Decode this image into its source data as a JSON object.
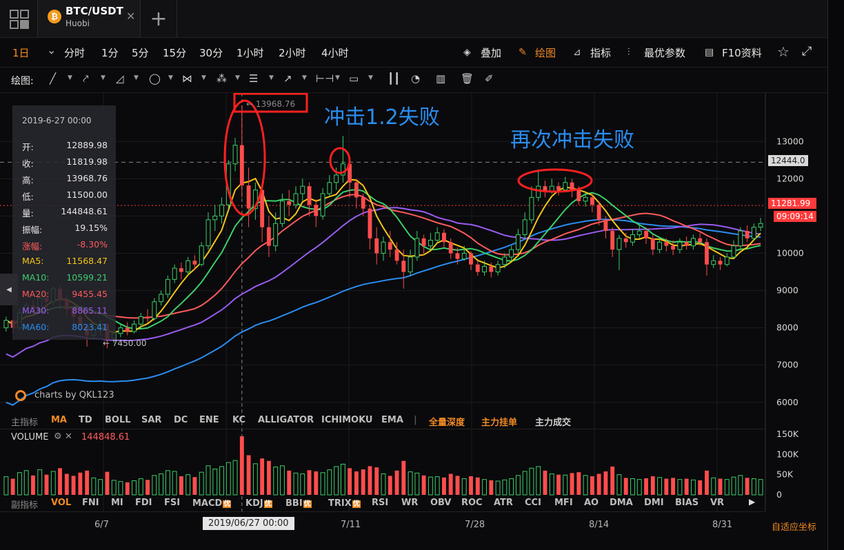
{
  "tab": {
    "coin_glyph": "₿",
    "pair": "BTC/USDT",
    "exchange": "Huobi",
    "close_glyph": "✕",
    "add_glyph": "+"
  },
  "toolbar": {
    "timeframes": [
      "1日",
      "分时",
      "1分",
      "5分",
      "15分",
      "30分",
      "1小时",
      "2小时",
      "4小时"
    ],
    "active_timeframe": "1日",
    "dropdown_glyph": "⌄",
    "right": [
      "叠加",
      "绘图",
      "指标",
      "最优参数",
      "F10资料"
    ],
    "active_right": "绘图",
    "right_icons": [
      "layers-icon",
      "pencil-icon",
      "chart-line-icon",
      "sliders-icon",
      "document-icon"
    ],
    "star_glyph": "☆",
    "fullscreen_glyph": "⤢"
  },
  "drawing": {
    "label": "绘图:"
  },
  "info": {
    "date": "2019-6-27 00:00",
    "rows": [
      {
        "k": "开:",
        "v": "12889.98",
        "color": "#e6e6e6"
      },
      {
        "k": "收:",
        "v": "11819.98",
        "color": "#e6e6e6"
      },
      {
        "k": "高:",
        "v": "13968.76",
        "color": "#e6e6e6"
      },
      {
        "k": "低:",
        "v": "11500.00",
        "color": "#e6e6e6"
      },
      {
        "k": "量:",
        "v": "144848.61",
        "color": "#e6e6e6"
      },
      {
        "k": "振幅:",
        "v": "19.15%",
        "color": "#e6e6e6"
      },
      {
        "k": "涨幅:",
        "v": "-8.30%",
        "color": "#ff5b5b"
      },
      {
        "k": "MA5:",
        "v": "11568.47",
        "color": "#f5c518"
      },
      {
        "k": "MA10:",
        "v": "10599.21",
        "color": "#3ccf6a"
      },
      {
        "k": "MA20:",
        "v": "9455.45",
        "color": "#ff5b5b"
      },
      {
        "k": "MA30:",
        "v": "8865.11",
        "color": "#9a5cf0"
      },
      {
        "k": "MA60:",
        "v": "8023.41",
        "color": "#2a8df0"
      }
    ]
  },
  "indicators_main": {
    "label": "主指标",
    "items": [
      "MA",
      "TD",
      "BOLL",
      "SAR",
      "DC",
      "ENE",
      "KC",
      "ALLIGATOR",
      "ICHIMOKU",
      "EMA"
    ],
    "active": "MA",
    "extra": [
      "全量深度",
      "主力挂单",
      "主力成交"
    ]
  },
  "indicators_sub": {
    "label": "副指标",
    "items": [
      "VOL",
      "FNI",
      "MI",
      "FDI",
      "FSI",
      "MACD",
      "KDJ",
      "BBI",
      "TRIX",
      "RSI",
      "WR",
      "OBV",
      "ROC",
      "ATR",
      "CCI",
      "MFI",
      "AO",
      "DMA",
      "DMI",
      "BIAS",
      "VR"
    ],
    "active": "VOL",
    "badged": [
      "MACD",
      "KDJ",
      "BBI",
      "TRIX"
    ],
    "badge_text": "优"
  },
  "volume": {
    "label": "VOLUME",
    "value": "144848.61"
  },
  "watermark": "charts by QKL123",
  "adaptive_label": "自适应坐标",
  "annotations": {
    "first": "冲击1.2失败",
    "second": "再次冲击失败"
  },
  "high_marker": "← 13968.76",
  "low_marker": "← 7450.00",
  "crosshair_date": "2019/06/27 00:00",
  "price_tags": {
    "dashed": "12444.0",
    "current": "11281.99",
    "countdown": "09:09:14"
  },
  "chart_data": {
    "type": "candlestick",
    "xlabels": [
      "6/7",
      "7/11",
      "7/28",
      "8/14",
      "8/31"
    ],
    "y_ticks": [
      6000,
      7000,
      8000,
      9000,
      10000,
      11000,
      12000,
      13000
    ],
    "y_tick_labels": [
      "6000",
      "7000",
      "8000",
      "9000",
      "10000",
      "",
      "12000",
      "13000"
    ],
    "ylim": [
      5700,
      14300
    ],
    "vol_ticks": [
      "150K",
      "100K",
      "50K",
      "0"
    ],
    "vol_max": 150000,
    "candles": [
      [
        8000,
        8200,
        8300,
        7900,
        45000
      ],
      [
        8200,
        8000,
        8250,
        7850,
        40000
      ],
      [
        8000,
        8400,
        8500,
        7950,
        55000
      ],
      [
        8400,
        8600,
        8700,
        8300,
        60000
      ],
      [
        8600,
        8500,
        8750,
        8350,
        48000
      ],
      [
        8500,
        8800,
        8900,
        8400,
        62000
      ],
      [
        8800,
        8700,
        8950,
        8500,
        50000
      ],
      [
        8700,
        9050,
        9100,
        8600,
        58000
      ],
      [
        9050,
        8750,
        9150,
        8500,
        66000
      ],
      [
        8750,
        8500,
        8850,
        8300,
        52000
      ],
      [
        8500,
        8300,
        8600,
        8100,
        47000
      ],
      [
        8300,
        8050,
        8400,
        7900,
        55000
      ],
      [
        8050,
        7800,
        8100,
        7500,
        60000
      ],
      [
        7800,
        7950,
        8050,
        7700,
        42000
      ],
      [
        7950,
        8100,
        8200,
        7800,
        38000
      ],
      [
        8100,
        7700,
        8150,
        7450,
        57000
      ],
      [
        7700,
        7850,
        7950,
        7600,
        36000
      ],
      [
        7850,
        8000,
        8100,
        7750,
        33000
      ],
      [
        8000,
        7900,
        8150,
        7800,
        31000
      ],
      [
        7900,
        8100,
        8200,
        7850,
        35000
      ],
      [
        8100,
        8300,
        8400,
        8000,
        40000
      ],
      [
        8300,
        8250,
        8500,
        8150,
        37000
      ],
      [
        8250,
        8700,
        8800,
        8200,
        48000
      ],
      [
        8700,
        8900,
        9000,
        8600,
        52000
      ],
      [
        8900,
        9300,
        9400,
        8800,
        60000
      ],
      [
        9300,
        9600,
        9700,
        9200,
        58000
      ],
      [
        9600,
        9500,
        9750,
        9300,
        46000
      ],
      [
        9500,
        9800,
        9900,
        9400,
        50000
      ],
      [
        9800,
        9700,
        9950,
        9550,
        44000
      ],
      [
        9700,
        10200,
        10300,
        9650,
        56000
      ],
      [
        10200,
        10900,
        11100,
        10100,
        72000
      ],
      [
        10900,
        11000,
        11300,
        10600,
        64000
      ],
      [
        11000,
        11300,
        11500,
        10800,
        70000
      ],
      [
        11300,
        12400,
        12500,
        11200,
        80000
      ],
      [
        12400,
        12900,
        13100,
        12200,
        85000
      ],
      [
        12900,
        11820,
        13968,
        11500,
        144848
      ],
      [
        11820,
        11200,
        12300,
        10700,
        98000
      ],
      [
        11200,
        11700,
        11900,
        10900,
        77000
      ],
      [
        11700,
        10700,
        11800,
        10300,
        90000
      ],
      [
        10700,
        10200,
        11000,
        9900,
        84000
      ],
      [
        10200,
        10800,
        11100,
        10050,
        69000
      ],
      [
        10800,
        11400,
        11600,
        10700,
        72000
      ],
      [
        11400,
        11300,
        11700,
        11000,
        60000
      ],
      [
        11300,
        11600,
        11800,
        11200,
        54000
      ],
      [
        11600,
        11800,
        12000,
        11400,
        52000
      ],
      [
        11800,
        11300,
        11900,
        11000,
        61000
      ],
      [
        11300,
        11000,
        11450,
        10700,
        58000
      ],
      [
        11000,
        11600,
        11750,
        10900,
        55000
      ],
      [
        11600,
        11900,
        12100,
        11500,
        62000
      ],
      [
        11900,
        12100,
        12300,
        11700,
        70000
      ],
      [
        12100,
        12400,
        13150,
        11900,
        76000
      ],
      [
        12400,
        11900,
        12500,
        11500,
        66000
      ],
      [
        11900,
        11500,
        12000,
        11200,
        58000
      ],
      [
        11500,
        11200,
        11600,
        11000,
        63000
      ],
      [
        11200,
        10400,
        11300,
        10100,
        71000
      ],
      [
        10400,
        10000,
        10700,
        9700,
        68000
      ],
      [
        10000,
        10300,
        10450,
        9800,
        52000
      ],
      [
        10300,
        10100,
        10600,
        9900,
        47000
      ],
      [
        10100,
        9800,
        10300,
        9700,
        60000
      ],
      [
        9800,
        9500,
        10100,
        9050,
        84000
      ],
      [
        9500,
        9900,
        10100,
        9400,
        57000
      ],
      [
        9900,
        10400,
        10600,
        9800,
        54000
      ],
      [
        10400,
        10200,
        10500,
        9950,
        48000
      ],
      [
        10200,
        10350,
        10550,
        10100,
        44000
      ],
      [
        10350,
        10550,
        10700,
        10300,
        45000
      ],
      [
        10550,
        10300,
        10650,
        10150,
        43000
      ],
      [
        10300,
        10000,
        10400,
        9850,
        52000
      ],
      [
        10000,
        9850,
        10150,
        9700,
        47000
      ],
      [
        9850,
        10000,
        10200,
        9800,
        40000
      ],
      [
        10000,
        9700,
        10050,
        9550,
        46000
      ],
      [
        9700,
        9500,
        9800,
        9400,
        43000
      ],
      [
        9500,
        9650,
        9800,
        9400,
        38000
      ],
      [
        9650,
        9500,
        9750,
        9350,
        36000
      ],
      [
        9500,
        9700,
        9800,
        9400,
        34000
      ],
      [
        9700,
        9900,
        10000,
        9600,
        37000
      ],
      [
        9900,
        10100,
        10200,
        9800,
        40000
      ],
      [
        10100,
        10500,
        10650,
        10000,
        48000
      ],
      [
        10500,
        10900,
        11100,
        10400,
        58000
      ],
      [
        10900,
        11500,
        11800,
        10800,
        66000
      ],
      [
        11500,
        11800,
        12250,
        11400,
        70000
      ],
      [
        11800,
        11650,
        11950,
        11500,
        60000
      ],
      [
        11650,
        11800,
        12000,
        11600,
        52000
      ],
      [
        11800,
        11700,
        11900,
        11550,
        50000
      ],
      [
        11700,
        11900,
        12050,
        11650,
        49000
      ],
      [
        11900,
        11700,
        12000,
        11500,
        54000
      ],
      [
        11700,
        11400,
        11800,
        11300,
        56000
      ],
      [
        11400,
        11500,
        11650,
        11250,
        48000
      ],
      [
        11500,
        11300,
        11600,
        11100,
        46000
      ],
      [
        11300,
        10900,
        11400,
        10750,
        52000
      ],
      [
        10900,
        10600,
        11000,
        10400,
        58000
      ],
      [
        10600,
        10100,
        10700,
        9900,
        70000
      ],
      [
        10100,
        10400,
        10500,
        9550,
        50000
      ],
      [
        10400,
        10300,
        10550,
        10150,
        42000
      ],
      [
        10300,
        10500,
        10650,
        10200,
        40000
      ],
      [
        10500,
        10600,
        10750,
        10400,
        38000
      ],
      [
        10600,
        10400,
        10700,
        10250,
        41000
      ],
      [
        10400,
        10100,
        10500,
        9950,
        46000
      ],
      [
        10100,
        10300,
        10450,
        10000,
        43000
      ],
      [
        10300,
        10200,
        10400,
        10050,
        40000
      ],
      [
        10200,
        10100,
        10350,
        9950,
        42000
      ],
      [
        10100,
        10300,
        10400,
        10000,
        38000
      ],
      [
        10300,
        10200,
        10450,
        10100,
        40000
      ],
      [
        10200,
        10400,
        10500,
        10100,
        37000
      ],
      [
        10400,
        10300,
        10550,
        10200,
        36000
      ],
      [
        10300,
        9700,
        10400,
        9400,
        60000
      ],
      [
        9700,
        9800,
        9950,
        9600,
        42000
      ],
      [
        9800,
        9700,
        9900,
        9550,
        40000
      ],
      [
        9700,
        9900,
        10000,
        9650,
        38000
      ],
      [
        9900,
        10200,
        10350,
        9850,
        44000
      ],
      [
        10200,
        10600,
        10700,
        10100,
        48000
      ],
      [
        10600,
        10400,
        10750,
        10300,
        42000
      ],
      [
        10400,
        10700,
        10800,
        10350,
        40000
      ],
      [
        10700,
        10800,
        10950,
        10600,
        38000
      ]
    ]
  }
}
